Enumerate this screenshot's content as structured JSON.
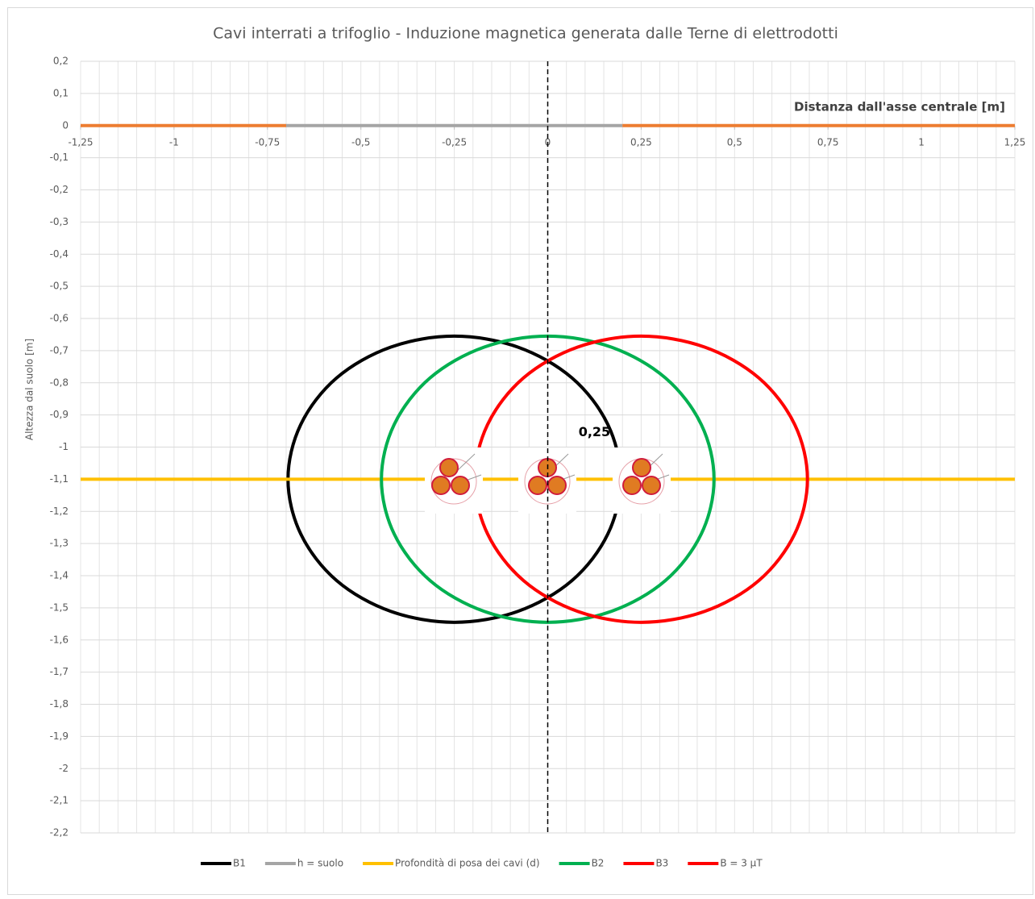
{
  "chart_data": {
    "type": "line",
    "title": "Cavi interrati a trifoglio - Induzione magnetica generata dalle Terne di elettrodotti",
    "x_label": "Distanza dall'asse centrale [m]",
    "y_label": "Altezza dal suolo [m]",
    "xlim": [
      -1.25,
      1.25
    ],
    "ylim": [
      -2.2,
      0.2
    ],
    "xticks": [
      {
        "value": -1.25,
        "label": "-1,25"
      },
      -1,
      {
        "value": -0.75,
        "label": "-0,75"
      },
      {
        "value": -0.5,
        "label": "-0,5"
      },
      {
        "value": -0.25,
        "label": "-0,25"
      },
      0,
      {
        "value": 0.25,
        "label": "0,25"
      },
      {
        "value": 0.5,
        "label": "0,5"
      },
      {
        "value": 0.75,
        "label": "0,75"
      },
      1,
      {
        "value": 1.25,
        "label": "1,25"
      }
    ],
    "yticks": [
      {
        "value": 0.2,
        "label": "0,2"
      },
      {
        "value": 0.1,
        "label": "0,1"
      },
      0,
      {
        "value": -0.1,
        "label": "-0,1"
      },
      {
        "value": -0.2,
        "label": "-0,2"
      },
      {
        "value": -0.3,
        "label": "-0,3"
      },
      {
        "value": -0.4,
        "label": "-0,4"
      },
      {
        "value": -0.5,
        "label": "-0,5"
      },
      {
        "value": -0.6,
        "label": "-0,6"
      },
      {
        "value": -0.7,
        "label": "-0,7"
      },
      {
        "value": -0.8,
        "label": "-0,8"
      },
      {
        "value": -0.9,
        "label": "-0,9"
      },
      -1,
      {
        "value": -1.1,
        "label": "-1,1"
      },
      {
        "value": -1.2,
        "label": "-1,2"
      },
      {
        "value": -1.3,
        "label": "-1,3"
      },
      {
        "value": -1.4,
        "label": "-1,4"
      },
      {
        "value": -1.5,
        "label": "-1,5"
      },
      {
        "value": -1.6,
        "label": "-1,6"
      },
      {
        "value": -1.7,
        "label": "-1,7"
      },
      {
        "value": -1.8,
        "label": "-1,8"
      },
      {
        "value": -1.9,
        "label": "-1,9"
      },
      -2,
      {
        "value": -2.1,
        "label": "-2,1"
      },
      {
        "value": -2.2,
        "label": "-2,2"
      }
    ],
    "grid": true,
    "x_minor_grid_step": 0.05,
    "legend": "bottom",
    "vline": 0,
    "annotation": {
      "text": "0,25",
      "x": 0.125,
      "y": -0.955
    },
    "series": [
      {
        "name": "B1",
        "color": "#000000",
        "smooth": true,
        "x": [
          0.195,
          0.161,
          0.065,
          -0.08,
          -0.25,
          -0.42,
          -0.565,
          -0.661,
          -0.695,
          -0.661,
          -0.565,
          -0.42,
          -0.25,
          -0.08,
          0.065,
          0.161,
          0.195
        ],
        "values": [
          -1.1,
          -0.93,
          -0.785,
          -0.689,
          -0.655,
          -0.689,
          -0.785,
          -0.93,
          -1.1,
          -1.27,
          -1.415,
          -1.511,
          -1.545,
          -1.511,
          -1.415,
          -1.27,
          -1.1
        ]
      },
      {
        "name": "h = suolo",
        "color": "#a5a5a5",
        "x": [
          -0.7,
          0.2
        ],
        "values": [
          0,
          0
        ]
      },
      {
        "name": "Profondità di posa dei cavi (d)",
        "color": "#ffc000",
        "x": [
          -1.25,
          1.25
        ],
        "values": [
          -1.1,
          -1.1
        ]
      },
      {
        "name": "B2",
        "color": "#00b050",
        "smooth": true,
        "x": [
          0.445,
          0.411,
          0.315,
          0.17,
          0,
          -0.17,
          -0.315,
          -0.411,
          -0.445,
          -0.411,
          -0.315,
          -0.17,
          0,
          0.17,
          0.315,
          0.411,
          0.445
        ],
        "values": [
          -1.1,
          -0.93,
          -0.785,
          -0.689,
          -0.655,
          -0.689,
          -0.785,
          -0.93,
          -1.1,
          -1.27,
          -1.415,
          -1.511,
          -1.545,
          -1.511,
          -1.415,
          -1.27,
          -1.1
        ]
      },
      {
        "name": "B3",
        "color": "#ff0000",
        "smooth": true,
        "x": [
          0.695,
          0.661,
          0.565,
          0.42,
          0.25,
          0.08,
          -0.065,
          -0.161,
          -0.195,
          -0.161,
          -0.065,
          0.08,
          0.25,
          0.42,
          0.565,
          0.661,
          0.695
        ],
        "values": [
          -1.1,
          -0.93,
          -0.785,
          -0.689,
          -0.655,
          -0.689,
          -0.785,
          -0.93,
          -1.1,
          -1.27,
          -1.415,
          -1.511,
          -1.545,
          -1.511,
          -1.415,
          -1.27,
          -1.1
        ]
      },
      {
        "name": "B = 3 µT",
        "color": "#ed7d31",
        "legend_color": "#ff0000",
        "x": [
          -1.25,
          -0.7,
          null,
          0.2,
          1.25
        ],
        "values": [
          0,
          0,
          null,
          0,
          0
        ]
      }
    ]
  }
}
